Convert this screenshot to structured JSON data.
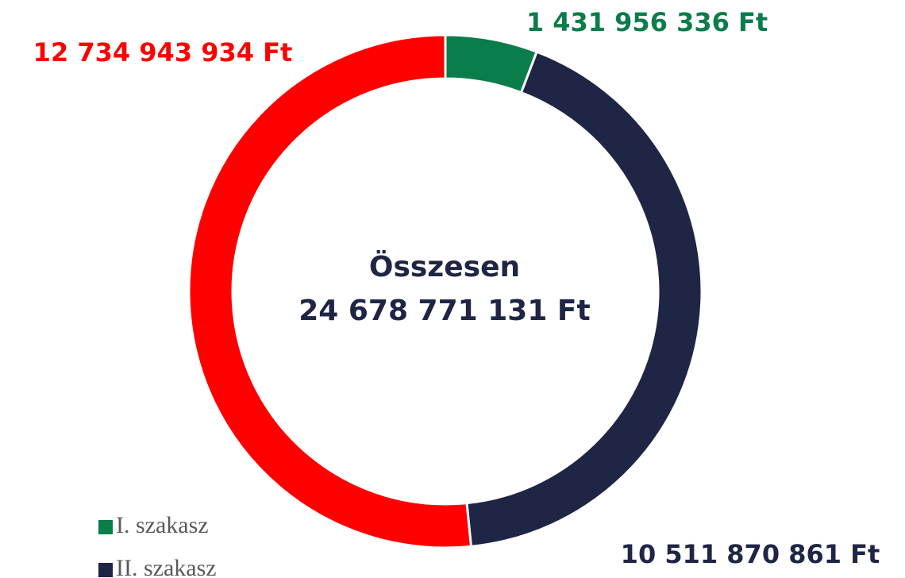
{
  "chart_data": {
    "type": "donut",
    "categories": [
      "I. szakasz",
      "II. szakasz",
      null
    ],
    "values": [
      1431956336,
      10511870861,
      12734943934
    ],
    "value_labels": [
      "1 431 956 336 Ft",
      "10 511 870 861 Ft",
      "12 734 943 934 Ft"
    ],
    "colors": [
      "#0a7d4a",
      "#1f2544",
      "#ff0000"
    ],
    "center_title": "Összesen",
    "total": 24678771131,
    "total_label": "24 678 771 131 Ft",
    "legend": "bottom-left"
  }
}
